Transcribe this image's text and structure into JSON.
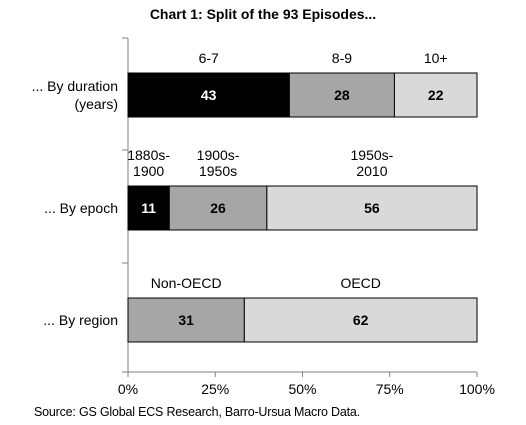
{
  "chart_data": {
    "type": "bar",
    "orientation": "horizontal-stacked",
    "title": "Chart 1: Split of the 93 Episodes...",
    "source": "Source: GS Global ECS Research, Barro-Ursua Macro Data.",
    "xlim": [
      0,
      100
    ],
    "x_ticks": [
      "0%",
      "25%",
      "50%",
      "75%",
      "100%"
    ],
    "total": 93,
    "grid": false,
    "legend": "none",
    "categories": [
      {
        "label_lines": [
          "... By duration",
          "(years)"
        ],
        "segments": [
          {
            "name_lines": [
              "6-7"
            ],
            "value": 43,
            "label": "43",
            "color": "#000000",
            "text_color": "#ffffff"
          },
          {
            "name_lines": [
              "8-9"
            ],
            "value": 28,
            "label": "28",
            "color": "#a6a6a6",
            "text_color": "#000000"
          },
          {
            "name_lines": [
              "10+"
            ],
            "value": 22,
            "label": "22",
            "color": "#d9d9d9",
            "text_color": "#000000"
          }
        ]
      },
      {
        "label_lines": [
          "... By epoch"
        ],
        "segments": [
          {
            "name_lines": [
              "1880s-",
              "1900"
            ],
            "value": 11,
            "label": "11",
            "color": "#000000",
            "text_color": "#ffffff"
          },
          {
            "name_lines": [
              "1900s-",
              "1950s"
            ],
            "value": 26,
            "label": "26",
            "color": "#a6a6a6",
            "text_color": "#000000"
          },
          {
            "name_lines": [
              "1950s-",
              "2010"
            ],
            "value": 56,
            "label": "56",
            "color": "#d9d9d9",
            "text_color": "#000000"
          }
        ]
      },
      {
        "label_lines": [
          "... By region"
        ],
        "segments": [
          {
            "name_lines": [
              "Non-OECD"
            ],
            "value": 31,
            "label": "31",
            "color": "#a6a6a6",
            "text_color": "#000000"
          },
          {
            "name_lines": [
              "OECD"
            ],
            "value": 62,
            "label": "62",
            "color": "#d9d9d9",
            "text_color": "#000000"
          }
        ]
      }
    ]
  }
}
